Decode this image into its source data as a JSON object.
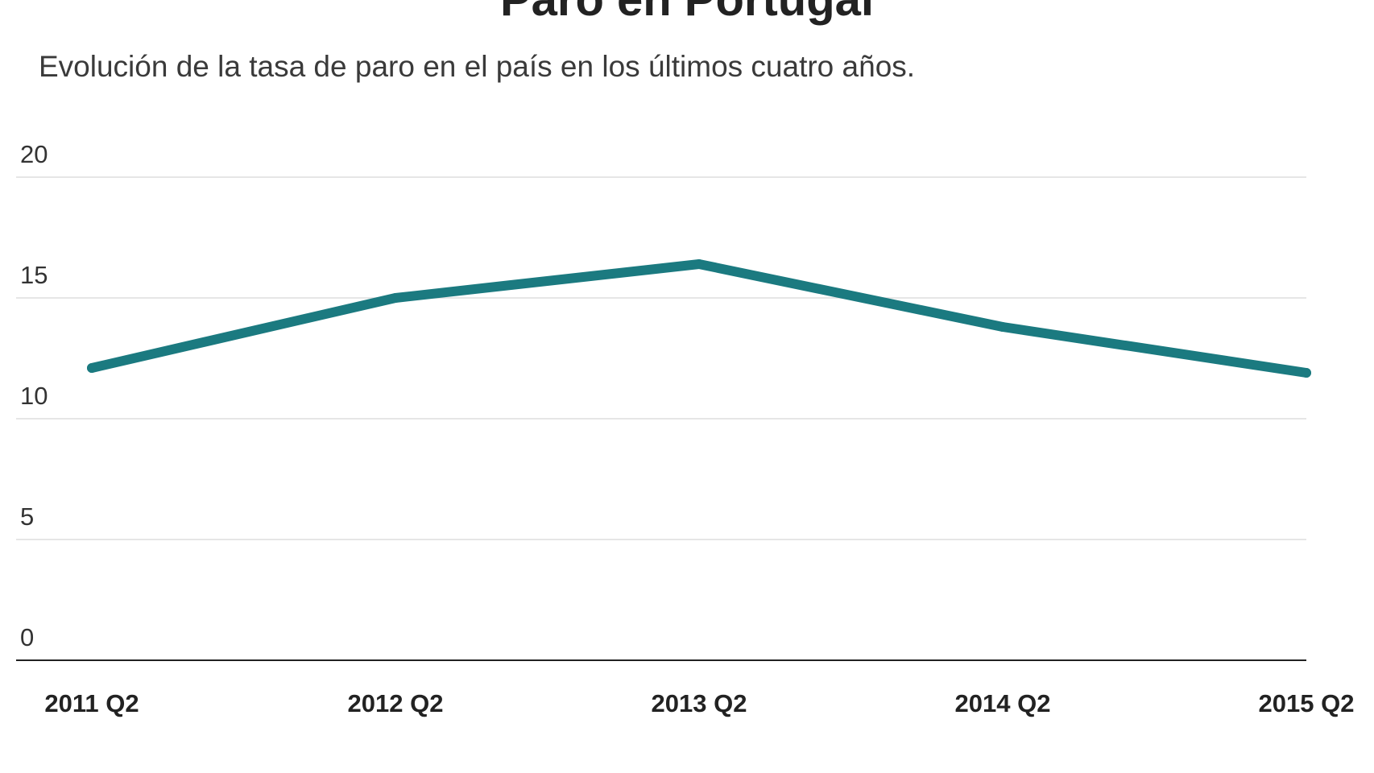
{
  "chart_data": {
    "type": "line",
    "title": "Paro en Portugal",
    "subtitle": "Evolución de la tasa de paro en el país en los últimos cuatro años.",
    "xlabel": "",
    "ylabel": "",
    "categories": [
      "2011 Q2",
      "2012 Q2",
      "2013 Q2",
      "2014 Q2",
      "2015 Q2"
    ],
    "series": [
      {
        "values": [
          12.1,
          15.0,
          16.4,
          13.8,
          11.9
        ]
      }
    ],
    "ylim": [
      0,
      20
    ],
    "yticks": [
      0,
      5,
      10,
      15,
      20
    ],
    "grid": true,
    "legend": "none",
    "line_color": "#1b7a80",
    "grid_color": "#dddddd",
    "axis_color": "#222222"
  }
}
